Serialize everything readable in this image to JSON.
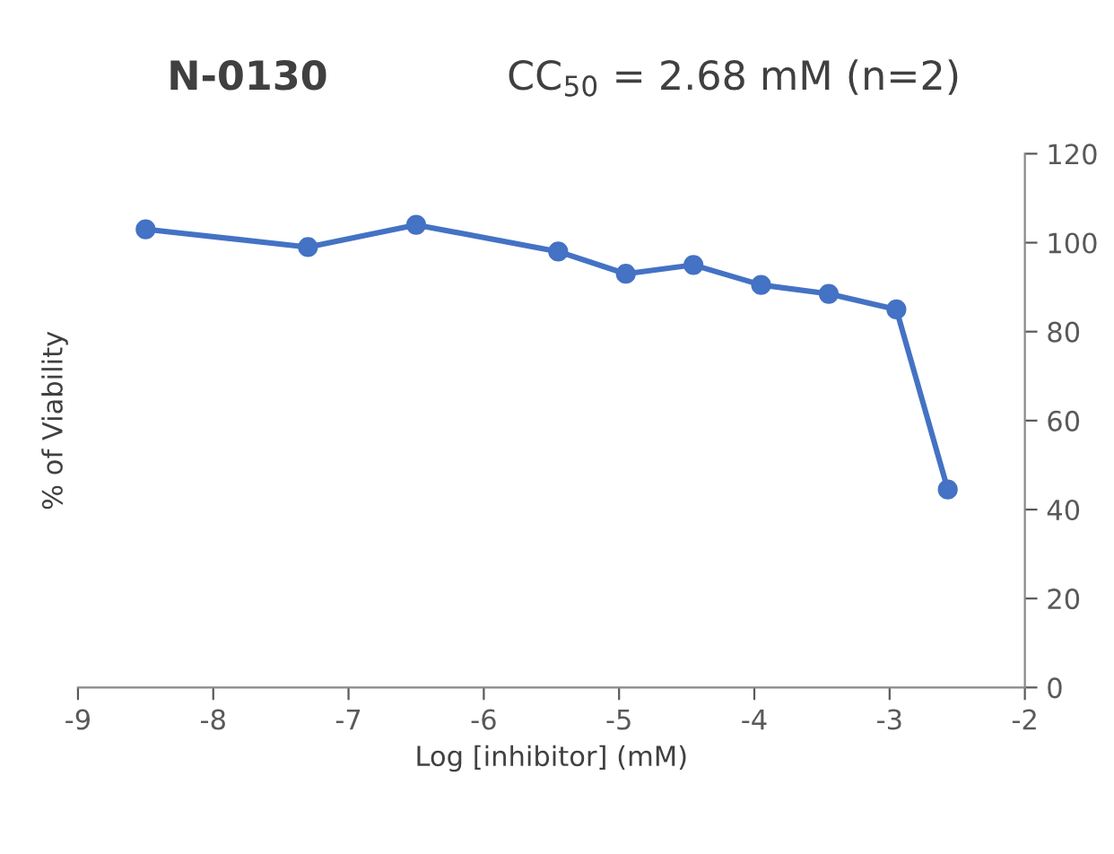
{
  "chart_data": {
    "type": "line",
    "title": "N-0130",
    "subtitle": "CC$_{50}$ = 2.68 mM (n=2)",
    "xlabel": "Log [inhibitor] (mM)",
    "ylabel": "% of Viability",
    "x": [
      -8.5,
      -7.3,
      -6.5,
      -5.45,
      -4.95,
      -4.45,
      -3.95,
      -3.45,
      -2.95,
      -2.57
    ],
    "series": [
      {
        "color": "#4472c4",
        "values": [
          103,
          99,
          104,
          98,
          93,
          95,
          90.5,
          88.5,
          85,
          44.5
        ]
      }
    ],
    "xlim": [
      -9,
      -2
    ],
    "xticks": [
      -9,
      -8,
      -7,
      -6,
      -5,
      -4,
      -3,
      -2
    ],
    "ylim": [
      0,
      120
    ],
    "yticks": [
      0,
      20,
      40,
      60,
      80,
      100,
      120
    ],
    "marker": "circle",
    "line_style": "solid",
    "grid": false,
    "legend": false
  }
}
